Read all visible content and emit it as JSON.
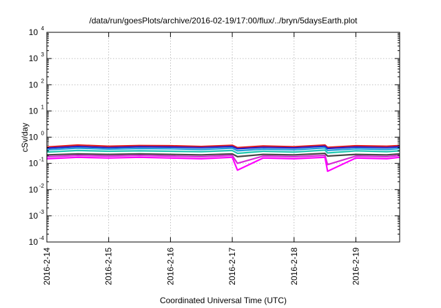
{
  "chart_data": {
    "type": "line",
    "title": "/data/run/goesPlots/archive/2016-02-19/17:00/flux/../bryn/5daysEarth.plot",
    "xlabel": "Coordinated Universal Time (UTC)",
    "ylabel": "cSv/day",
    "yscale": "log",
    "ylim": [
      0.0001,
      10000
    ],
    "xlim": [
      "2016-02-14 00:00",
      "2016-02-19 17:00"
    ],
    "grid": true,
    "legend": "none",
    "yticks": [
      {
        "base": "10",
        "exp": "-4"
      },
      {
        "base": "10",
        "exp": "-3"
      },
      {
        "base": "10",
        "exp": "-2"
      },
      {
        "base": "10",
        "exp": "-1"
      },
      {
        "base": "10",
        "exp": "0"
      },
      {
        "base": "10",
        "exp": "1"
      },
      {
        "base": "10",
        "exp": "2"
      },
      {
        "base": "10",
        "exp": "3"
      },
      {
        "base": "10",
        "exp": "4"
      }
    ],
    "xticks": [
      "2016-2-14",
      "2016-2-15",
      "2016-2-16",
      "2016-2-17",
      "2016-2-18",
      "2016-2-19"
    ],
    "x": [
      "2016-02-14 00:00",
      "2016-02-14 12:00",
      "2016-02-15 00:00",
      "2016-02-15 12:00",
      "2016-02-16 00:00",
      "2016-02-16 12:00",
      "2016-02-17 00:00",
      "2016-02-17 02:00",
      "2016-02-17 12:00",
      "2016-02-18 00:00",
      "2016-02-18 12:00",
      "2016-02-18 13:00",
      "2016-02-19 00:00",
      "2016-02-19 12:00",
      "2016-02-19 17:00"
    ],
    "series": [
      {
        "color": "#e41a1c",
        "values": [
          0.42,
          0.5,
          0.45,
          0.48,
          0.47,
          0.44,
          0.49,
          0.4,
          0.46,
          0.43,
          0.5,
          0.41,
          0.47,
          0.45,
          0.48
        ]
      },
      {
        "color": "#2222cc",
        "values": [
          0.38,
          0.44,
          0.4,
          0.43,
          0.42,
          0.4,
          0.44,
          0.36,
          0.41,
          0.39,
          0.45,
          0.37,
          0.42,
          0.4,
          0.43
        ]
      },
      {
        "color": "#1e9fd8",
        "values": [
          0.33,
          0.38,
          0.35,
          0.37,
          0.36,
          0.34,
          0.38,
          0.3,
          0.35,
          0.33,
          0.39,
          0.31,
          0.36,
          0.34,
          0.37
        ]
      },
      {
        "color": "#20c8b0",
        "values": [
          0.27,
          0.31,
          0.29,
          0.3,
          0.29,
          0.28,
          0.31,
          0.24,
          0.29,
          0.27,
          0.32,
          0.25,
          0.3,
          0.28,
          0.3
        ]
      },
      {
        "color": "#444444",
        "values": [
          0.21,
          0.23,
          0.22,
          0.23,
          0.22,
          0.21,
          0.23,
          0.18,
          0.22,
          0.21,
          0.24,
          0.19,
          0.22,
          0.21,
          0.23
        ]
      },
      {
        "color": "#d62ad6",
        "values": [
          0.18,
          0.2,
          0.19,
          0.2,
          0.19,
          0.18,
          0.2,
          0.1,
          0.19,
          0.18,
          0.2,
          0.09,
          0.19,
          0.18,
          0.2
        ]
      },
      {
        "color": "#ff00ff",
        "values": [
          0.15,
          0.17,
          0.16,
          0.17,
          0.16,
          0.15,
          0.17,
          0.055,
          0.16,
          0.15,
          0.17,
          0.05,
          0.16,
          0.15,
          0.17
        ]
      }
    ]
  }
}
